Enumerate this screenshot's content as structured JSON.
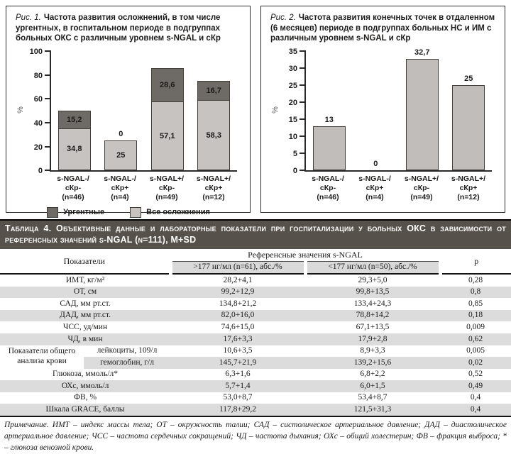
{
  "chart_data": [
    {
      "type": "bar",
      "stacked": true,
      "caption_label": "Рис. 1.",
      "caption_text": "Частота развития осложнений, в том числе ургентных, в госпитальном периоде в подгруппах больных ОКС с различным уровнем s-NGAL и сКр",
      "title": "Рис. 1. Частота развития осложнений, в том числе ургентных, в госпитальном периоде в подгруппах больных ОКС с различным уровнем s-NGAL и сКр",
      "categories": [
        "s-NGAL-/\nсКр-\n(n=46)",
        "s-NGAL-/\nсКр+\n(n=4)",
        "s-NGAL+/\nсКр-\n(n=49)",
        "s-NGAL+/\nсКр+\n(n=12)"
      ],
      "series": [
        {
          "name": "Все осложнения",
          "values": [
            34.8,
            25,
            57.1,
            58.3
          ],
          "labels": [
            "34,8",
            "25",
            "57,1",
            "58,3"
          ],
          "color": "#c6c3c0"
        },
        {
          "name": "Ургентные",
          "values": [
            15.2,
            0,
            28.6,
            16.7
          ],
          "labels": [
            "15,2",
            "0",
            "28,6",
            "16,7"
          ],
          "color": "#6e6a65"
        }
      ],
      "xlabel": "",
      "ylabel": "%",
      "ylim": [
        0,
        100
      ],
      "yticks": [
        0,
        20,
        40,
        60,
        80,
        100
      ],
      "grid": false,
      "legend": true,
      "legend_position": "bottom"
    },
    {
      "type": "bar",
      "stacked": false,
      "caption_label": "Рис. 2.",
      "caption_text": "Частота развития конечных точек в отдаленном (6 месяцев) периоде в подгруппах больных НС и ИМ с различным уровнем s-NGAL и сКр",
      "title": "Рис. 2. Частота развития конечных точек в отдаленном (6 месяцев) периоде в подгруппах больных НС и ИМ с различным уровнем s-NGAL и сКр",
      "categories": [
        "s-NGAL-/\nсКр-\n(n=46)",
        "s-NGAL-/\nсКр+\n(n=4)",
        "s-NGAL+/\nсКр-\n(n=49)",
        "s-NGAL+/\nсКр+\n(n=12)"
      ],
      "values": [
        13,
        0,
        32.7,
        25
      ],
      "labels": [
        "13",
        "0",
        "32,7",
        "25"
      ],
      "bar_color": "#c0bdba",
      "xlabel": "",
      "ylabel": "%",
      "ylim": [
        0,
        35
      ],
      "yticks": [
        0,
        5,
        10,
        15,
        20,
        25,
        30,
        35
      ],
      "grid": false,
      "legend": false
    }
  ],
  "table": {
    "title": "Таблица 4. Объективные данные и лабораторные показатели при госпитализации у больных ОКС в зависимости от референсных значений s-NGAL (n=111), M+SD",
    "header": {
      "col1": "Показатели",
      "span": "Референсные значения s-NGAL",
      "sub1": ">177 нг/мл (n=61), абс./%",
      "sub2": "<177 нг/мл (n=50), абс./%",
      "p": "р"
    },
    "rows": [
      {
        "label": "ИМТ, кг/м²",
        "v1": "28,2+4,1",
        "v2": "29,3+5,0",
        "p": "0,28"
      },
      {
        "label": "ОТ, см",
        "v1": "99,2+12,9",
        "v2": "99,8+13,5",
        "p": "0,8"
      },
      {
        "label": "САД, мм рт.ст.",
        "v1": "134,8+21,2",
        "v2": "133,4+24,3",
        "p": "0,85"
      },
      {
        "label": "ДАД, мм рт.ст.",
        "v1": "82,0+16,0",
        "v2": "78,8+14,2",
        "p": "0,18"
      },
      {
        "label": "ЧСС, уд/мин",
        "v1": "74,6+15,0",
        "v2": "67,1+13,5",
        "p": "0,009"
      },
      {
        "label": "ЧД, в мин",
        "v1": "17,6+3,3",
        "v2": "17,9+2,8",
        "p": "0,62"
      },
      {
        "group": "Показатели общего анализа крови",
        "label": "лейкоциты, 109/л",
        "v1": "10,6+3,5",
        "v2": "8,9+3,3",
        "p": "0,005"
      },
      {
        "in_group": true,
        "label": "гемоглобин, г/л",
        "v1": "145,7+21,9",
        "v2": "139,2+15,6",
        "p": "0,02"
      },
      {
        "label": "Глюкоза, ммоль/л*",
        "v1": "6,3+1,6",
        "v2": "6,8+2,2",
        "p": "0,52"
      },
      {
        "label": "ОХс, ммоль/л",
        "v1": "5,7+1,4",
        "v2": "6,0+1,5",
        "p": "0,49"
      },
      {
        "label": "ФВ, %",
        "v1": "53,0+8,7",
        "v2": "53,4+8,7",
        "p": "0,4"
      },
      {
        "label": "Шкала GRACE, баллы",
        "v1": "117,8+29,2",
        "v2": "121,5+31,3",
        "p": "0,4"
      }
    ]
  },
  "footnote": "Примечание. ИМТ – индекс массы тела; ОТ – окружность талии; САД – систолическое артериальное давление; ДАД – диастолическое артериальное давление; ЧСС – частота сердечных сокращений; ЧД – частота дыхания; ОХс – общий холестерин; ФВ – фракция выброса; * – глюкоза венозной крови.",
  "colors": {
    "bar_light": "#c6c3c0",
    "bar_dark": "#6e6a65",
    "table_title_bg": "#56514a",
    "row_alt": "#dcdcdc",
    "subheader_bg": "#d9d9d9"
  }
}
